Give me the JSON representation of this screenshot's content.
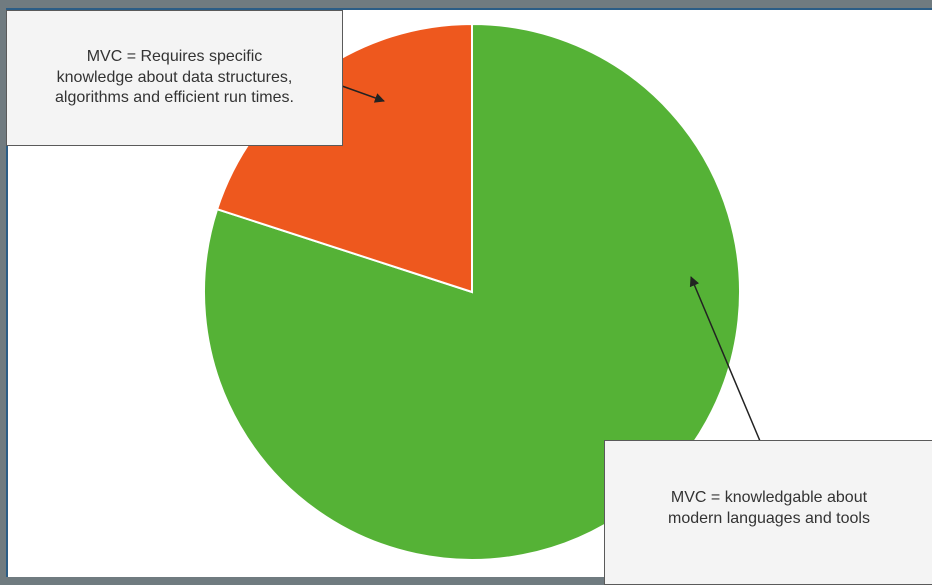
{
  "chart_data": {
    "type": "pie",
    "slices": [
      {
        "value": 80,
        "color": "#55b236"
      },
      {
        "value": 20,
        "color": "#ee581e"
      }
    ],
    "annotations": [
      {
        "id": "top",
        "text": "MVC = Requires specific\nknowledge about data structures,\nalgorithms and efficient run times."
      },
      {
        "id": "bottom",
        "text": "MVC = knowledgable about\nmodern languages and tools"
      }
    ]
  }
}
